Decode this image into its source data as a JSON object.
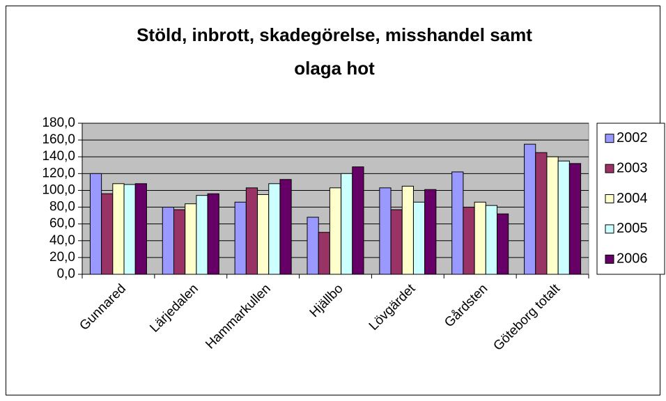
{
  "chart_data": {
    "type": "bar",
    "title": [
      "Stöld, inbrott, skadegörelse, misshandel samt",
      "olaga hot"
    ],
    "categories": [
      "Gunnared",
      "Lärjedalen",
      "Hammarkullen",
      "Hjällbo",
      "Lövgärdet",
      "Gårdsten",
      "Göteborg totalt"
    ],
    "series": [
      {
        "name": "2002",
        "color": "#9999ff",
        "values": [
          120,
          80,
          86,
          68,
          103,
          122,
          155
        ]
      },
      {
        "name": "2003",
        "color": "#993366",
        "values": [
          96,
          77,
          103,
          50,
          77,
          80,
          145
        ]
      },
      {
        "name": "2004",
        "color": "#ffffcc",
        "values": [
          108,
          84,
          95,
          103,
          105,
          86,
          140
        ]
      },
      {
        "name": "2005",
        "color": "#ccffff",
        "values": [
          107,
          94,
          108,
          120,
          86,
          82,
          135
        ]
      },
      {
        "name": "2006",
        "color": "#660066",
        "values": [
          108,
          96,
          113,
          128,
          101,
          72,
          132
        ]
      }
    ],
    "ylim": [
      0,
      180
    ],
    "yticks": [
      {
        "value": 0,
        "label": "0,0"
      },
      {
        "value": 20,
        "label": "20,0"
      },
      {
        "value": 40,
        "label": "40,0"
      },
      {
        "value": 60,
        "label": "60,0"
      },
      {
        "value": 80,
        "label": "80,0"
      },
      {
        "value": 100,
        "label": "100,0"
      },
      {
        "value": 120,
        "label": "120,0"
      },
      {
        "value": 140,
        "label": "140,0"
      },
      {
        "value": 160,
        "label": "160,0"
      },
      {
        "value": 180,
        "label": "180,0"
      }
    ],
    "grid": true,
    "legend": "right",
    "plot_background": "#c0c0c0"
  }
}
